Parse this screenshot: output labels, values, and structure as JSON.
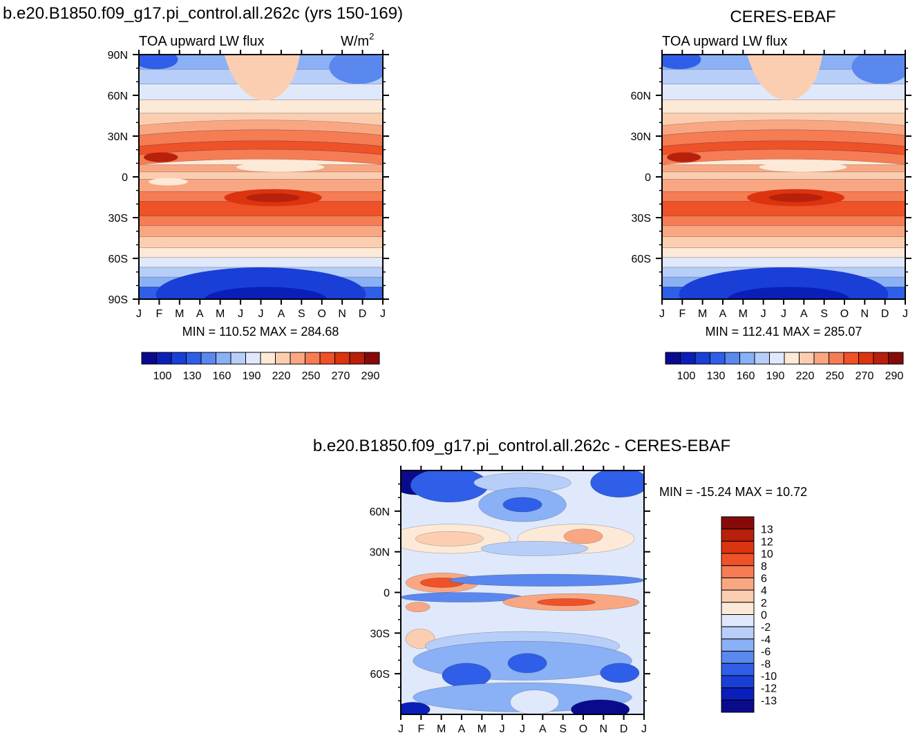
{
  "figure_title_left": "b.e20.B1850.f09_g17.pi_control.all.262c (yrs 150-169)",
  "figure_title_right": "CERES-EBAF",
  "colors": {
    "lw_palette": [
      "#0a0b8c",
      "#0a1fba",
      "#1a3fd6",
      "#2f5fe8",
      "#5a88ee",
      "#8ab0f5",
      "#b7cef9",
      "#dfe9fb",
      "#fde9d7",
      "#fcceb1",
      "#f9a783",
      "#f67c54",
      "#ef5128",
      "#db340f",
      "#b8200b",
      "#870a0a"
    ],
    "diff_palette": [
      "#0a0b8c",
      "#0a1fba",
      "#1a3fd6",
      "#2f5fe8",
      "#5a88ee",
      "#8ab0f5",
      "#b7cef9",
      "#dfe9fb",
      "#fde9d7",
      "#fcceb1",
      "#f9a783",
      "#f67c54",
      "#ef5128",
      "#db340f",
      "#b8200b",
      "#870a0a"
    ]
  },
  "chart_data": [
    {
      "type": "heatmap",
      "id": "model",
      "title": "",
      "subtitle_left": "TOA upward LW flux",
      "subtitle_right": "W/m",
      "subtitle_right_sup": "2",
      "x_ticks": [
        "J",
        "F",
        "M",
        "A",
        "M",
        "J",
        "J",
        "A",
        "S",
        "O",
        "N",
        "D",
        "J"
      ],
      "y_ticks": [
        "90N",
        "60N",
        "30N",
        "0",
        "30S",
        "60S",
        "90S"
      ],
      "y_range": [
        90,
        -90
      ],
      "stats": "MIN = 110.52  MAX = 284.68",
      "legend_labels": [
        "100",
        "130",
        "160",
        "190",
        "220",
        "250",
        "270",
        "290"
      ]
    },
    {
      "type": "heatmap",
      "id": "obs",
      "title": "CERES-EBAF",
      "subtitle_left": "TOA upward LW flux",
      "x_ticks": [
        "J",
        "F",
        "M",
        "A",
        "M",
        "J",
        "J",
        "A",
        "S",
        "O",
        "N",
        "D",
        "J"
      ],
      "y_ticks": [
        "60N",
        "30N",
        "0",
        "30S",
        "60S"
      ],
      "y_range": [
        90,
        -90
      ],
      "stats": "MIN = 112.41  MAX = 285.07",
      "legend_labels": [
        "100",
        "130",
        "160",
        "190",
        "220",
        "250",
        "270",
        "290"
      ]
    },
    {
      "type": "heatmap",
      "id": "diff",
      "title": "b.e20.B1850.f09_g17.pi_control.all.262c - CERES-EBAF",
      "x_ticks": [
        "J",
        "F",
        "M",
        "A",
        "M",
        "J",
        "J",
        "A",
        "S",
        "O",
        "N",
        "D",
        "J"
      ],
      "y_ticks": [
        "60N",
        "30N",
        "0",
        "30S",
        "60S"
      ],
      "y_range": [
        90,
        -90
      ],
      "stats": "MIN = -15.24 MAX =  10.72",
      "legend_labels": [
        "13",
        "12",
        "10",
        "8",
        "6",
        "4",
        "2",
        "0",
        "-2",
        "-4",
        "-6",
        "-8",
        "-10",
        "-12",
        "-13"
      ]
    }
  ]
}
